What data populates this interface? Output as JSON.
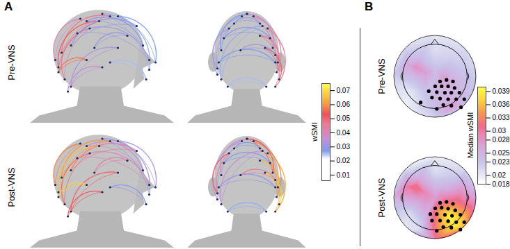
{
  "chart_data": [
    {
      "type": "network",
      "title": "A",
      "rows": [
        {
          "name": "Pre-VNS",
          "views": [
            [
              [
                0.24,
                0.58,
                0.55,
                0.88,
                0.047
              ],
              [
                0.22,
                0.46,
                0.48,
                0.84,
                0.052
              ],
              [
                0.26,
                0.36,
                0.42,
                0.78,
                0.044
              ],
              [
                0.3,
                0.64,
                0.72,
                0.8,
                0.03
              ],
              [
                0.4,
                0.84,
                0.76,
                0.64,
                0.028
              ],
              [
                0.34,
                0.74,
                0.8,
                0.52,
                0.031
              ],
              [
                0.2,
                0.52,
                0.36,
                0.86,
                0.04
              ],
              [
                0.5,
                0.9,
                0.8,
                0.44,
                0.026
              ],
              [
                0.3,
                0.3,
                0.6,
                0.62,
                0.033
              ],
              [
                0.6,
                0.88,
                0.84,
                0.5,
                0.027
              ],
              [
                0.22,
                0.42,
                0.4,
                0.52,
                0.056
              ],
              [
                0.45,
                0.62,
                0.66,
                0.72,
                0.03
              ],
              [
                0.28,
                0.26,
                0.5,
                0.46,
                0.036
              ],
              [
                0.55,
                0.5,
                0.78,
                0.36,
                0.025
              ]
            ],
            [
              [
                0.28,
                0.5,
                0.72,
                0.5,
                0.027
              ],
              [
                0.32,
                0.7,
                0.68,
                0.7,
                0.029
              ],
              [
                0.27,
                0.4,
                0.46,
                0.88,
                0.026
              ],
              [
                0.55,
                0.88,
                0.73,
                0.42,
                0.042
              ],
              [
                0.6,
                0.72,
                0.74,
                0.5,
                0.048
              ],
              [
                0.64,
                0.62,
                0.75,
                0.36,
                0.052
              ],
              [
                0.4,
                0.82,
                0.6,
                0.82,
                0.03
              ],
              [
                0.3,
                0.6,
                0.5,
                0.9,
                0.028
              ],
              [
                0.5,
                0.9,
                0.7,
                0.62,
                0.035
              ],
              [
                0.35,
                0.3,
                0.65,
                0.3,
                0.025
              ],
              [
                0.27,
                0.45,
                0.36,
                0.78,
                0.033
              ],
              [
                0.66,
                0.78,
                0.72,
                0.3,
                0.045
              ],
              [
                0.45,
                0.6,
                0.72,
                0.56,
                0.031
              ],
              [
                0.3,
                0.36,
                0.62,
                0.8,
                0.026
              ]
            ]
          ]
        },
        {
          "name": "Post-VNS",
          "views": [
            [
              [
                0.24,
                0.58,
                0.55,
                0.88,
                0.06
              ],
              [
                0.22,
                0.46,
                0.48,
                0.84,
                0.065
              ],
              [
                0.26,
                0.36,
                0.42,
                0.78,
                0.055
              ],
              [
                0.3,
                0.64,
                0.72,
                0.8,
                0.045
              ],
              [
                0.4,
                0.84,
                0.76,
                0.64,
                0.035
              ],
              [
                0.34,
                0.74,
                0.8,
                0.52,
                0.04
              ],
              [
                0.2,
                0.52,
                0.36,
                0.86,
                0.058
              ],
              [
                0.5,
                0.9,
                0.8,
                0.44,
                0.03
              ],
              [
                0.3,
                0.3,
                0.6,
                0.62,
                0.05
              ],
              [
                0.6,
                0.88,
                0.84,
                0.5,
                0.032
              ],
              [
                0.22,
                0.42,
                0.4,
                0.52,
                0.068
              ],
              [
                0.45,
                0.62,
                0.66,
                0.72,
                0.042
              ],
              [
                0.28,
                0.26,
                0.5,
                0.46,
                0.052
              ],
              [
                0.55,
                0.5,
                0.78,
                0.36,
                0.029
              ]
            ],
            [
              [
                0.28,
                0.5,
                0.72,
                0.5,
                0.03
              ],
              [
                0.32,
                0.7,
                0.68,
                0.7,
                0.028
              ],
              [
                0.27,
                0.4,
                0.46,
                0.88,
                0.033
              ],
              [
                0.55,
                0.88,
                0.73,
                0.42,
                0.058
              ],
              [
                0.6,
                0.72,
                0.74,
                0.5,
                0.064
              ],
              [
                0.64,
                0.62,
                0.75,
                0.36,
                0.068
              ],
              [
                0.4,
                0.82,
                0.6,
                0.82,
                0.027
              ],
              [
                0.3,
                0.6,
                0.5,
                0.9,
                0.036
              ],
              [
                0.5,
                0.9,
                0.7,
                0.62,
                0.052
              ],
              [
                0.35,
                0.3,
                0.65,
                0.3,
                0.026
              ],
              [
                0.27,
                0.45,
                0.36,
                0.78,
                0.05
              ],
              [
                0.66,
                0.78,
                0.72,
                0.3,
                0.062
              ],
              [
                0.45,
                0.6,
                0.72,
                0.56,
                0.045
              ],
              [
                0.3,
                0.36,
                0.62,
                0.8,
                0.035
              ]
            ]
          ]
        }
      ],
      "colorbar": {
        "label": "wSMI",
        "range": [
          0.006,
          0.075
        ],
        "ticks": [
          0.01,
          0.02,
          0.03,
          0.04,
          0.05,
          0.06,
          0.07
        ],
        "stops": [
          0.006,
          0.021,
          0.027,
          0.036,
          0.046,
          0.053,
          0.061,
          0.075
        ],
        "colors": [
          "#ffffff",
          "#ffffff",
          "#7f9cf0",
          "#c98ed6",
          "#ef7a90",
          "#f05058",
          "#f7a040",
          "#ffff50"
        ]
      }
    },
    {
      "type": "topomap",
      "title": "B",
      "maps": [
        {
          "name": "Pre-VNS",
          "samples": [
            [
              1.35,
              0,
              0.022
            ],
            [
              0.95,
              0.95,
              0.021
            ],
            [
              0,
              1.35,
              0.02
            ],
            [
              -0.95,
              0.95,
              0.021
            ],
            [
              -1.35,
              0,
              0.022
            ],
            [
              -0.95,
              -0.95,
              0.019
            ],
            [
              0,
              -1.35,
              0.022
            ],
            [
              0.95,
              -0.95,
              0.024
            ],
            [
              0,
              0.8,
              0.021
            ],
            [
              0.5,
              0.6,
              0.022
            ],
            [
              -0.5,
              0.6,
              0.024
            ],
            [
              -0.6,
              0.3,
              0.028
            ],
            [
              -0.85,
              0.35,
              0.026
            ],
            [
              -0.3,
              0.15,
              0.027
            ],
            [
              0,
              0.3,
              0.023
            ],
            [
              0.4,
              0.25,
              0.024
            ],
            [
              0.8,
              0.2,
              0.023
            ],
            [
              0.3,
              -0.05,
              0.027
            ],
            [
              0.6,
              -0.2,
              0.025
            ],
            [
              -0.6,
              -0.2,
              0.023
            ],
            [
              -0.8,
              -0.5,
              0.02
            ],
            [
              -0.3,
              -0.5,
              0.023
            ],
            [
              0.1,
              -0.4,
              0.025
            ],
            [
              0.5,
              -0.6,
              0.025
            ],
            [
              0.5,
              -0.95,
              0.027
            ],
            [
              0.85,
              -0.6,
              0.024
            ],
            [
              0,
              -0.9,
              0.024
            ],
            [
              -0.5,
              -1.0,
              0.021
            ],
            [
              0,
              0,
              0.024
            ]
          ],
          "significant": [
            [
              0.15,
              -0.15
            ],
            [
              0.35,
              -0.1
            ],
            [
              0.55,
              -0.15
            ],
            [
              0.0,
              -0.3
            ],
            [
              0.2,
              -0.3
            ],
            [
              0.4,
              -0.3
            ],
            [
              0.6,
              -0.35
            ],
            [
              -0.2,
              -0.45
            ],
            [
              0.05,
              -0.48
            ],
            [
              0.3,
              -0.5
            ],
            [
              0.5,
              -0.5
            ],
            [
              0.75,
              -0.5
            ],
            [
              -0.1,
              -0.65
            ],
            [
              0.15,
              -0.68
            ],
            [
              0.4,
              -0.7
            ],
            [
              0.65,
              -0.7
            ],
            [
              0.9,
              -0.7
            ],
            [
              -0.45,
              -0.8
            ],
            [
              0.25,
              -0.88
            ],
            [
              0.5,
              -0.9
            ],
            [
              0.8,
              -0.95
            ],
            [
              0.05,
              -1.0
            ]
          ]
        },
        {
          "name": "Post-VNS",
          "samples": [
            [
              1.35,
              0,
              0.026
            ],
            [
              0.95,
              0.95,
              0.021
            ],
            [
              0,
              1.35,
              0.019
            ],
            [
              -0.95,
              0.95,
              0.02
            ],
            [
              -1.35,
              0,
              0.025
            ],
            [
              -0.95,
              -0.95,
              0.02
            ],
            [
              0,
              -1.35,
              0.03
            ],
            [
              0.95,
              -0.95,
              0.035
            ],
            [
              0,
              0.8,
              0.021
            ],
            [
              0.5,
              0.6,
              0.023
            ],
            [
              -0.5,
              0.6,
              0.026
            ],
            [
              -0.6,
              0.35,
              0.032
            ],
            [
              -0.85,
              0.35,
              0.03
            ],
            [
              -0.3,
              0.15,
              0.029
            ],
            [
              0,
              0.3,
              0.025
            ],
            [
              0.4,
              0.25,
              0.026
            ],
            [
              0.8,
              0.2,
              0.028
            ],
            [
              0.3,
              -0.05,
              0.03
            ],
            [
              0.6,
              -0.2,
              0.033
            ],
            [
              -0.6,
              -0.2,
              0.025
            ],
            [
              -0.8,
              -0.5,
              0.021
            ],
            [
              -0.3,
              -0.5,
              0.025
            ],
            [
              0.1,
              -0.4,
              0.034
            ],
            [
              0.45,
              -0.55,
              0.039
            ],
            [
              0.6,
              -0.85,
              0.039
            ],
            [
              0.9,
              -0.6,
              0.036
            ],
            [
              0.1,
              -0.9,
              0.034
            ],
            [
              -0.5,
              -1.0,
              0.021
            ],
            [
              0,
              0,
              0.027
            ]
          ],
          "significant": [
            [
              0.15,
              -0.15
            ],
            [
              0.35,
              -0.12
            ],
            [
              0.55,
              -0.18
            ],
            [
              0.0,
              -0.32
            ],
            [
              0.2,
              -0.3
            ],
            [
              0.4,
              -0.33
            ],
            [
              0.62,
              -0.38
            ],
            [
              -0.15,
              -0.5
            ],
            [
              0.05,
              -0.5
            ],
            [
              0.3,
              -0.52
            ],
            [
              0.52,
              -0.55
            ],
            [
              0.78,
              -0.52
            ],
            [
              -0.1,
              -0.7
            ],
            [
              0.15,
              -0.7
            ],
            [
              0.4,
              -0.72
            ],
            [
              0.65,
              -0.75
            ],
            [
              0.9,
              -0.75
            ],
            [
              0.25,
              -0.9
            ],
            [
              0.5,
              -0.92
            ],
            [
              0.78,
              -0.98
            ],
            [
              0.05,
              -1.02
            ]
          ]
        }
      ],
      "colorbar": {
        "label": "Median wSMI",
        "range": [
          0.018,
          0.04
        ],
        "ticks": [
          0.018,
          0.02,
          0.023,
          0.025,
          0.028,
          0.03,
          0.033,
          0.036,
          0.039
        ],
        "stops": [
          0.018,
          0.02,
          0.023,
          0.026,
          0.029,
          0.031,
          0.034,
          0.037,
          0.04
        ],
        "colors": [
          "#ffffff",
          "#e4e8f4",
          "#c8c4ea",
          "#d6a8dc",
          "#e887b6",
          "#f06a8a",
          "#f79552",
          "#fbd23e",
          "#ffff44"
        ]
      }
    }
  ]
}
